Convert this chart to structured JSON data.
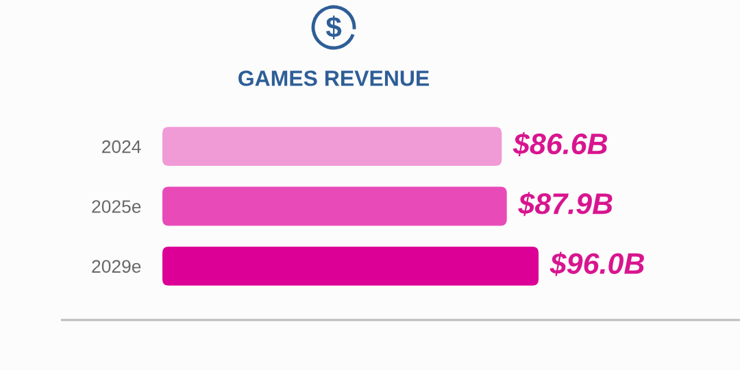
{
  "chart_data": {
    "type": "bar",
    "orientation": "horizontal",
    "title": "GAMES REVENUE",
    "categories": [
      "2024",
      "2025e",
      "2029e"
    ],
    "values": [
      86.6,
      87.9,
      96.0
    ],
    "colors": [
      "#f09ad6",
      "#e84bb8",
      "#dc0096"
    ],
    "value_labels": [
      "$86.6B",
      "$87.9B",
      "$96.0B"
    ],
    "tick_labels": "y"
  }
}
